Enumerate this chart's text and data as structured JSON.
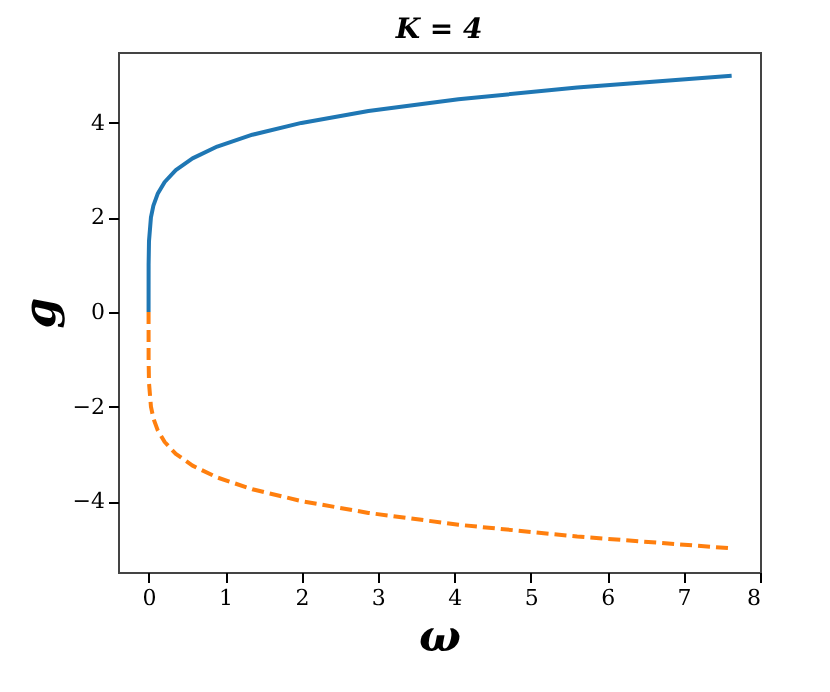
{
  "chart_data": {
    "type": "line",
    "title": "K = 4",
    "xlabel": "ω",
    "ylabel": "g",
    "x": [
      0,
      0.0005,
      0.0056,
      0.031,
      0.063,
      0.119,
      0.211,
      0.356,
      0.575,
      0.898,
      1.358,
      2.0,
      2.877,
      4.055,
      5.608,
      7.629
    ],
    "series": [
      {
        "color": "#1f77b4",
        "line_style": "solid",
        "values": [
          0,
          1,
          1.5,
          2,
          2.25,
          2.5,
          2.75,
          3,
          3.25,
          3.5,
          3.75,
          4,
          4.25,
          4.5,
          4.75,
          5
        ]
      },
      {
        "color": "#ff7f0e",
        "line_style": "dashed",
        "values": [
          0,
          -1,
          -1.5,
          -2,
          -2.25,
          -2.5,
          -2.75,
          -3,
          -3.25,
          -3.5,
          -3.75,
          -4,
          -4.25,
          -4.5,
          -4.75,
          -5
        ]
      }
    ],
    "xlim": [
      -0.4,
      8
    ],
    "ylim": [
      -5.5,
      5.5
    ],
    "xticks": [
      0,
      1,
      2,
      3,
      4,
      5,
      6,
      7,
      8
    ],
    "yticks": [
      -4,
      -2,
      0,
      2,
      4
    ],
    "grid": false,
    "marker": "none"
  }
}
